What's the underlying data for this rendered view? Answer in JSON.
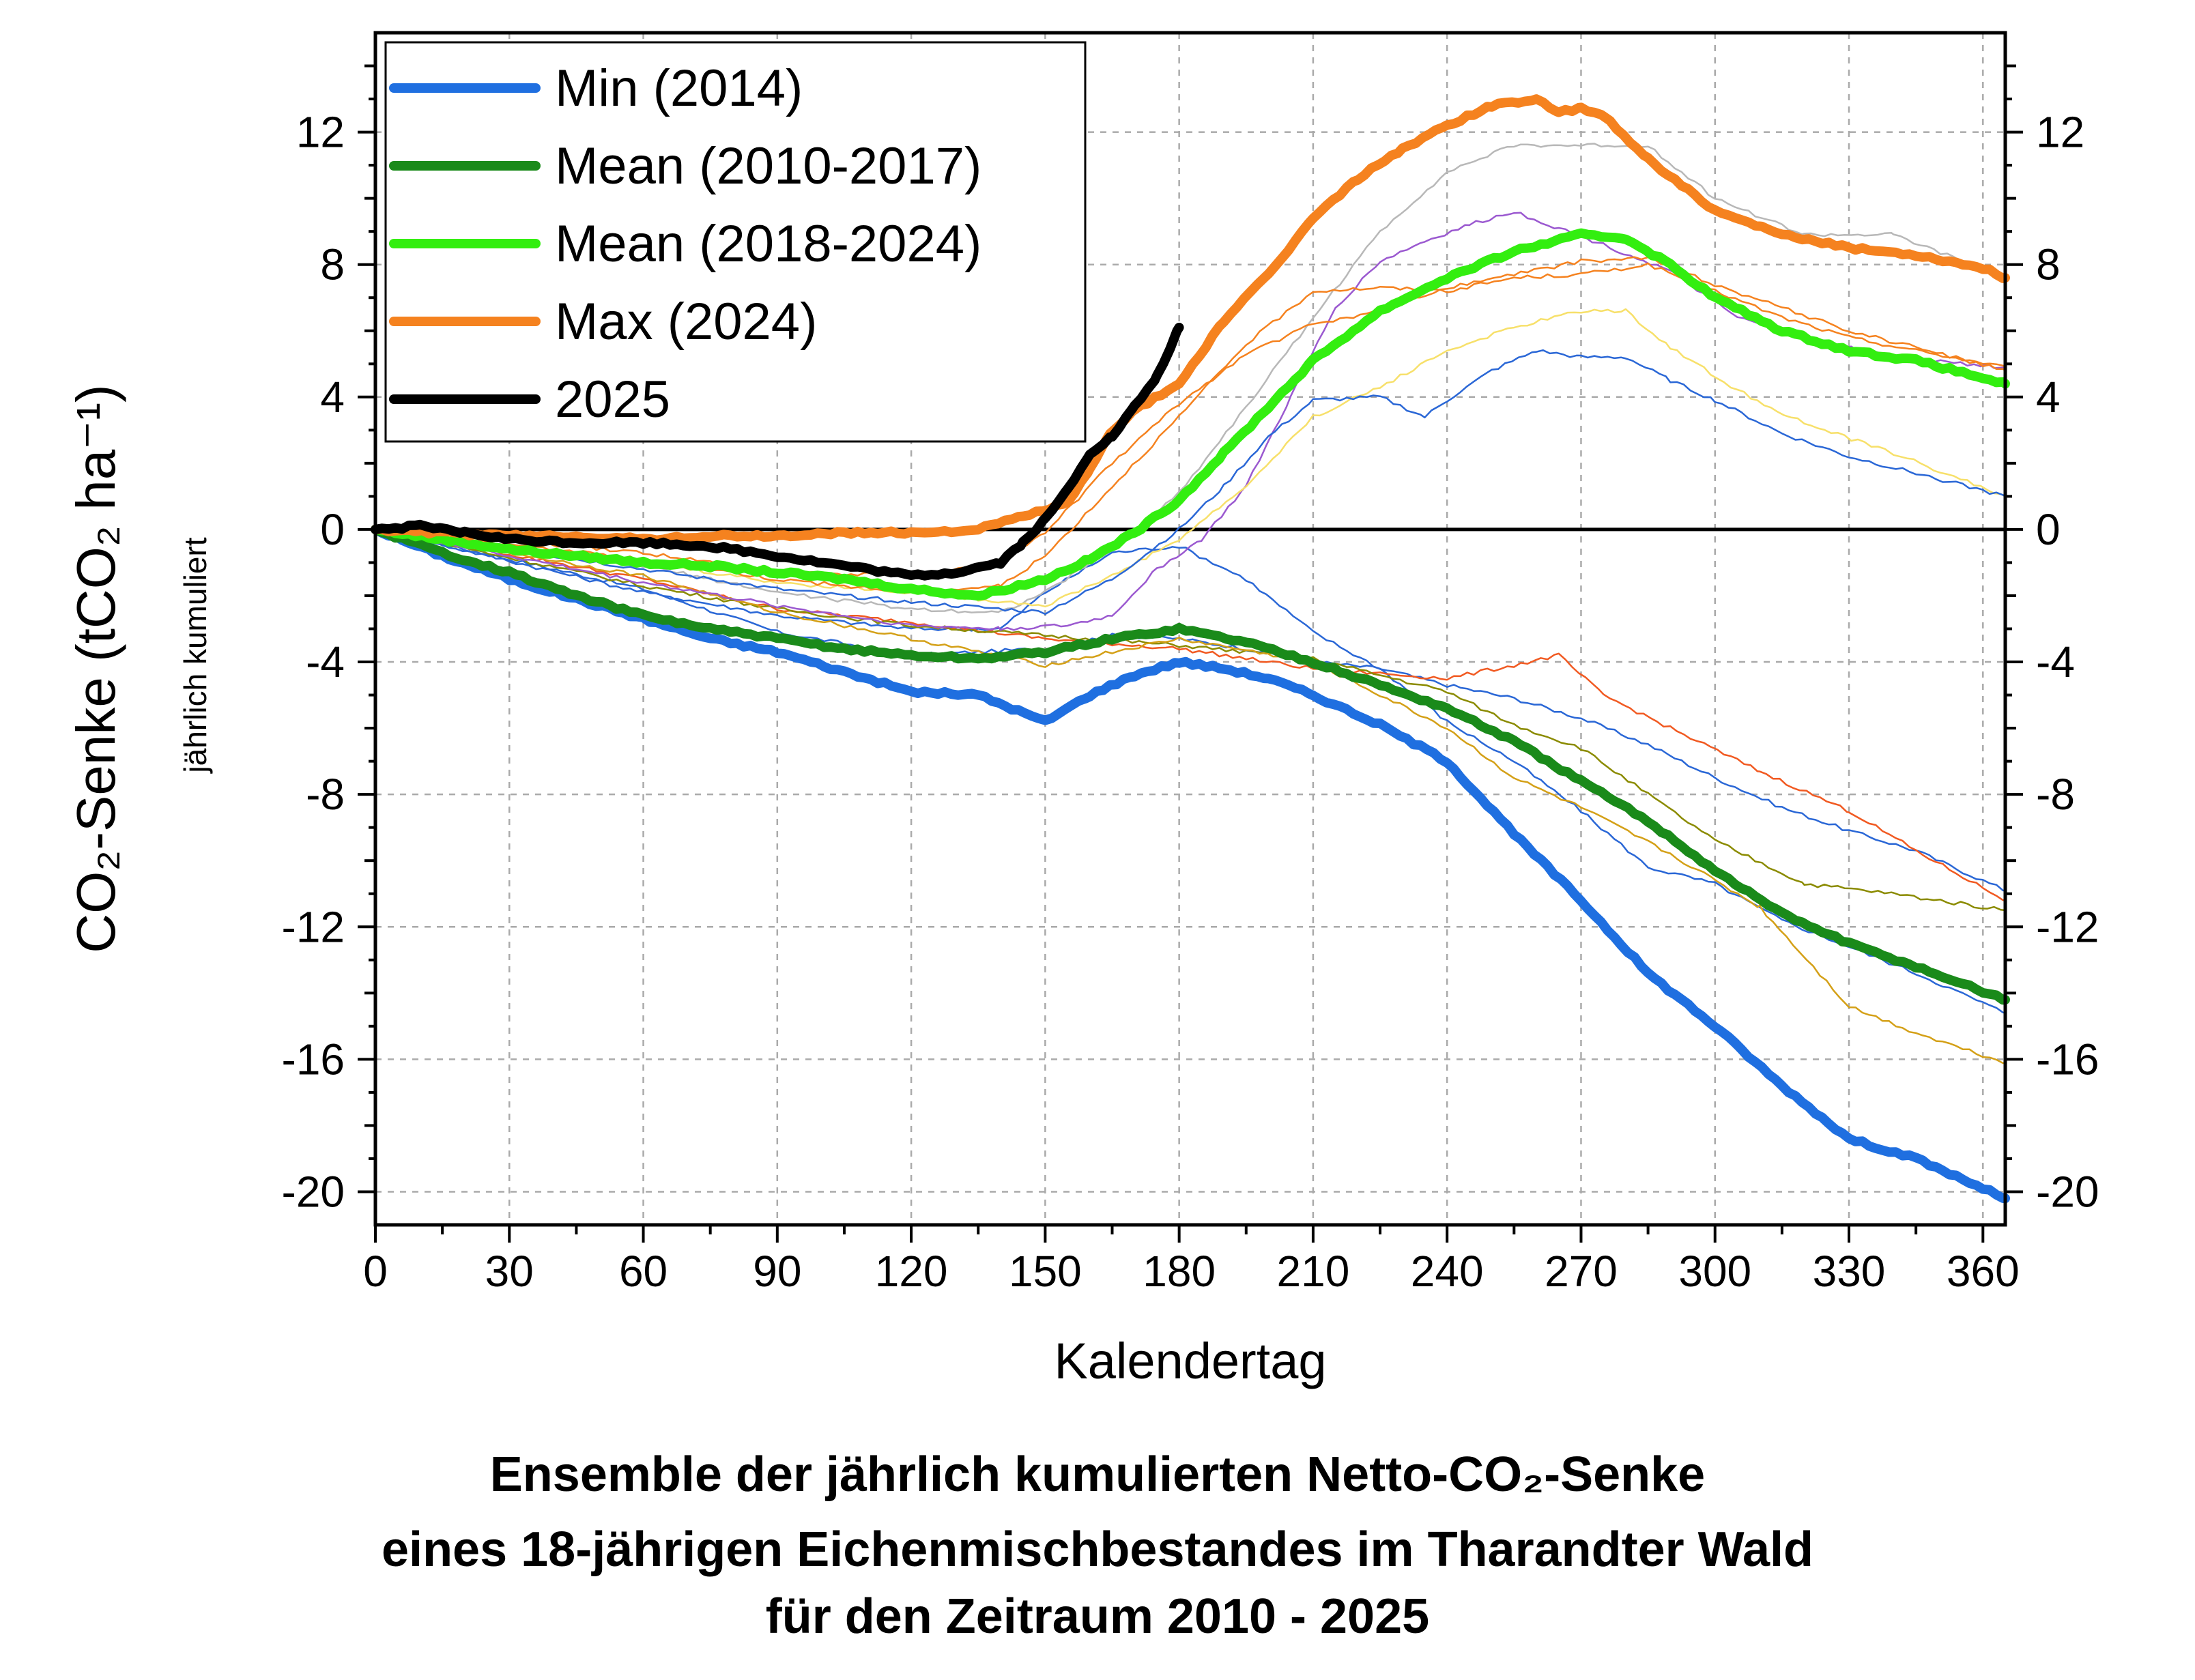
{
  "chart_data": {
    "type": "line",
    "title_lines": [
      "Ensemble der jährlich kumulierten Netto-CO₂-Senke",
      "eines 18-jährigen Eichenmischbestandes im Tharandter Wald",
      "für den Zeitraum 2010 - 2025"
    ],
    "xlabel": "Kalendertag",
    "ylabel": "CO₂-Senke (tCO₂ ha⁻¹)",
    "ylabel_sub": "jährlich kumuliert",
    "xlim": [
      0,
      365
    ],
    "ylim": [
      -21,
      15
    ],
    "xticks": [
      0,
      30,
      60,
      90,
      120,
      150,
      180,
      210,
      240,
      270,
      300,
      330,
      360
    ],
    "yticks": [
      12,
      8,
      4,
      0,
      -4,
      -8,
      -12,
      -16,
      -20
    ],
    "ytick_labels": [
      "12",
      "8",
      "4",
      "0",
      "-4",
      "-8",
      "-12",
      "-16",
      "-20"
    ],
    "grid": true,
    "legend_position": "top-left",
    "series": [
      {
        "name": "Min (2014)",
        "color": "#1f6fe0",
        "width": 14,
        "x": [
          0,
          15,
          30,
          45,
          60,
          75,
          90,
          105,
          120,
          135,
          150,
          160,
          170,
          180,
          190,
          200,
          210,
          225,
          240,
          255,
          270,
          285,
          300,
          315,
          330,
          345,
          365
        ],
        "y": [
          0,
          -0.8,
          -1.5,
          -2.1,
          -2.7,
          -3.3,
          -3.7,
          -4.3,
          -4.9,
          -5.0,
          -5.8,
          -5.0,
          -4.4,
          -4.0,
          -4.2,
          -4.5,
          -5.0,
          -5.9,
          -7.0,
          -9.2,
          -11.2,
          -13.4,
          -15.0,
          -16.8,
          -18.4,
          -19.0,
          -20.2
        ]
      },
      {
        "name": "Mean (2010-2017)",
        "color": "#1a8a1a",
        "width": 14,
        "x": [
          0,
          15,
          30,
          45,
          60,
          75,
          90,
          105,
          120,
          135,
          150,
          165,
          180,
          195,
          210,
          225,
          240,
          255,
          270,
          285,
          300,
          315,
          330,
          345,
          365
        ],
        "y": [
          0,
          -0.7,
          -1.3,
          -2.0,
          -2.6,
          -3.0,
          -3.3,
          -3.6,
          -3.8,
          -3.9,
          -3.7,
          -3.3,
          -3.0,
          -3.4,
          -4.0,
          -4.7,
          -5.4,
          -6.4,
          -7.6,
          -8.8,
          -10.3,
          -11.6,
          -12.5,
          -13.2,
          -14.2
        ]
      },
      {
        "name": "Mean (2018-2024)",
        "color": "#33ee10",
        "width": 14,
        "x": [
          0,
          15,
          30,
          45,
          60,
          75,
          90,
          105,
          120,
          135,
          150,
          160,
          170,
          180,
          190,
          200,
          210,
          225,
          240,
          255,
          270,
          280,
          290,
          300,
          315,
          330,
          345,
          365
        ],
        "y": [
          0,
          -0.3,
          -0.6,
          -0.8,
          -1.0,
          -1.1,
          -1.3,
          -1.5,
          -1.8,
          -2.0,
          -1.5,
          -0.9,
          -0.1,
          0.9,
          2.3,
          3.7,
          5.1,
          6.6,
          7.6,
          8.4,
          8.9,
          8.8,
          8.0,
          7.0,
          6.0,
          5.4,
          5.1,
          4.4
        ]
      },
      {
        "name": "Max (2024)",
        "color": "#f5821f",
        "width": 14,
        "x": [
          0,
          15,
          30,
          45,
          60,
          75,
          90,
          105,
          120,
          135,
          145,
          155,
          160,
          165,
          170,
          180,
          190,
          200,
          210,
          220,
          230,
          240,
          250,
          260,
          265,
          270,
          275,
          285,
          300,
          315,
          330,
          345,
          360,
          365
        ],
        "y": [
          0,
          -0.1,
          -0.2,
          -0.2,
          -0.3,
          -0.2,
          -0.2,
          -0.1,
          -0.1,
          0,
          0.4,
          0.8,
          1.8,
          3.0,
          3.6,
          4.4,
          6.3,
          7.7,
          9.4,
          10.6,
          11.5,
          12.2,
          12.8,
          13.0,
          12.6,
          12.7,
          12.5,
          11.2,
          9.6,
          8.9,
          8.5,
          8.3,
          7.9,
          7.6
        ]
      },
      {
        "name": "2025",
        "color": "#000000",
        "width": 14,
        "x": [
          0,
          10,
          20,
          30,
          45,
          60,
          75,
          90,
          105,
          120,
          130,
          140,
          145,
          150,
          155,
          160,
          165,
          170,
          175,
          180
        ],
        "y": [
          0,
          0.1,
          -0.1,
          -0.3,
          -0.4,
          -0.4,
          -0.5,
          -0.8,
          -1.1,
          -1.4,
          -1.3,
          -1.0,
          -0.4,
          0.3,
          1.2,
          2.3,
          2.8,
          3.7,
          4.6,
          6.1
        ]
      }
    ],
    "background_series": [
      {
        "color": "#2a67d6",
        "x": [
          0,
          60,
          90,
          120,
          150,
          165,
          180,
          195,
          210,
          225,
          240,
          255,
          270,
          285,
          300,
          315,
          330,
          345,
          365
        ],
        "y": [
          0,
          -1.8,
          -3.1,
          -3.8,
          -3.6,
          -3.2,
          -3.3,
          -3.6,
          -4.0,
          -4.2,
          -4.7,
          -5.1,
          -5.7,
          -6.5,
          -7.5,
          -8.4,
          -9.1,
          -9.7,
          -10.9
        ]
      },
      {
        "color": "#2a67d6",
        "x": [
          0,
          60,
          90,
          120,
          140,
          150,
          165,
          180,
          195,
          210,
          225,
          240,
          255,
          270,
          285,
          300,
          315,
          330,
          345,
          365
        ],
        "y": [
          0,
          -1.9,
          -2.6,
          -3.0,
          -3.0,
          -1.9,
          -0.7,
          -0.5,
          -1.5,
          -3.1,
          -4.2,
          -5.8,
          -7.0,
          -8.5,
          -10.2,
          -10.7,
          -11.8,
          -12.6,
          -13.4,
          -14.6
        ]
      },
      {
        "color": "#f15a22",
        "x": [
          0,
          60,
          90,
          120,
          150,
          180,
          210,
          240,
          255,
          265,
          275,
          290,
          310,
          330,
          345,
          365
        ],
        "y": [
          0,
          -1.5,
          -2.4,
          -2.8,
          -3.3,
          -3.6,
          -4.2,
          -4.5,
          -4.1,
          -3.8,
          -5.0,
          -6.0,
          -7.3,
          -8.5,
          -9.7,
          -11.2
        ]
      },
      {
        "color": "#8b8b00",
        "x": [
          0,
          60,
          90,
          120,
          150,
          180,
          210,
          240,
          255,
          270,
          285,
          300,
          320,
          340,
          365
        ],
        "y": [
          0,
          -1.7,
          -2.4,
          -2.9,
          -3.2,
          -3.5,
          -3.9,
          -4.9,
          -5.9,
          -6.6,
          -8.0,
          -9.4,
          -10.7,
          -11.0,
          -11.5
        ]
      },
      {
        "color": "#d4a017",
        "x": [
          0,
          60,
          90,
          120,
          150,
          180,
          210,
          240,
          255,
          270,
          290,
          310,
          330,
          345,
          365
        ],
        "y": [
          0,
          -1.4,
          -2.5,
          -3.3,
          -4.1,
          -3.3,
          -4.0,
          -6.0,
          -7.5,
          -8.4,
          -9.8,
          -11.4,
          -14.4,
          -15.2,
          -16.1
        ]
      },
      {
        "color": "#9b59d0",
        "x": [
          0,
          60,
          90,
          120,
          140,
          155,
          165,
          175,
          185,
          195,
          205,
          215,
          225,
          235,
          245,
          255,
          265,
          275,
          290,
          305,
          320,
          340,
          365
        ],
        "y": [
          0,
          -1.6,
          -2.3,
          -2.9,
          -3.0,
          -2.9,
          -2.6,
          -1.2,
          -0.3,
          1.3,
          4.0,
          6.7,
          8.1,
          8.7,
          9.2,
          9.6,
          9.1,
          8.6,
          7.8,
          6.4,
          5.8,
          5.2,
          4.9
        ]
      },
      {
        "color": "#b8b8b8",
        "x": [
          0,
          60,
          90,
          120,
          140,
          150,
          165,
          180,
          195,
          210,
          225,
          240,
          255,
          270,
          285,
          300,
          320,
          340,
          365
        ],
        "y": [
          0,
          -1.1,
          -1.9,
          -2.4,
          -2.5,
          -1.9,
          -0.6,
          1.1,
          3.7,
          6.4,
          9.0,
          10.8,
          11.6,
          11.6,
          11.6,
          10.0,
          8.9,
          8.9,
          7.6
        ]
      },
      {
        "color": "#f7e06a",
        "x": [
          0,
          60,
          90,
          120,
          150,
          165,
          180,
          195,
          210,
          225,
          240,
          255,
          270,
          280,
          290,
          305,
          320,
          340,
          365
        ],
        "y": [
          0,
          -1.0,
          -1.6,
          -1.9,
          -2.3,
          -1.4,
          -0.3,
          1.3,
          3.4,
          4.3,
          5.4,
          6.1,
          6.6,
          6.6,
          5.5,
          4.2,
          3.2,
          2.3,
          1.0
        ]
      },
      {
        "color": "#2a67d6",
        "x": [
          0,
          60,
          90,
          120,
          150,
          165,
          180,
          190,
          200,
          210,
          225,
          235,
          240,
          250,
          260,
          270,
          280,
          290,
          300,
          315,
          330,
          345,
          365
        ],
        "y": [
          0,
          -1.2,
          -1.8,
          -2.2,
          -2.5,
          -1.5,
          0.0,
          1.3,
          2.8,
          3.9,
          4.0,
          3.4,
          3.9,
          4.8,
          5.4,
          5.2,
          5.2,
          4.5,
          3.9,
          2.9,
          2.2,
          1.7,
          1.0
        ]
      },
      {
        "color": "#f5821f",
        "x": [
          0,
          60,
          90,
          120,
          140,
          150,
          165,
          180,
          195,
          210,
          225,
          240,
          255,
          270,
          285,
          300,
          315,
          330,
          345,
          365
        ],
        "y": [
          0,
          -0.7,
          -1.3,
          -1.4,
          -1.0,
          -0.1,
          2.0,
          3.8,
          5.3,
          6.2,
          6.6,
          7.3,
          7.7,
          8.1,
          8.2,
          7.4,
          6.7,
          6.0,
          5.5,
          4.8
        ]
      },
      {
        "color": "#f5821f",
        "x": [
          0,
          60,
          90,
          120,
          140,
          150,
          165,
          180,
          195,
          210,
          225,
          240,
          255,
          270,
          285,
          300,
          315,
          330,
          345,
          365
        ],
        "y": [
          0,
          -0.9,
          -1.5,
          -1.9,
          -1.7,
          -0.8,
          1.3,
          3.4,
          5.6,
          7.2,
          7.3,
          7.2,
          7.6,
          7.7,
          8.0,
          7.2,
          6.4,
          5.8,
          5.4,
          4.9
        ]
      }
    ]
  }
}
